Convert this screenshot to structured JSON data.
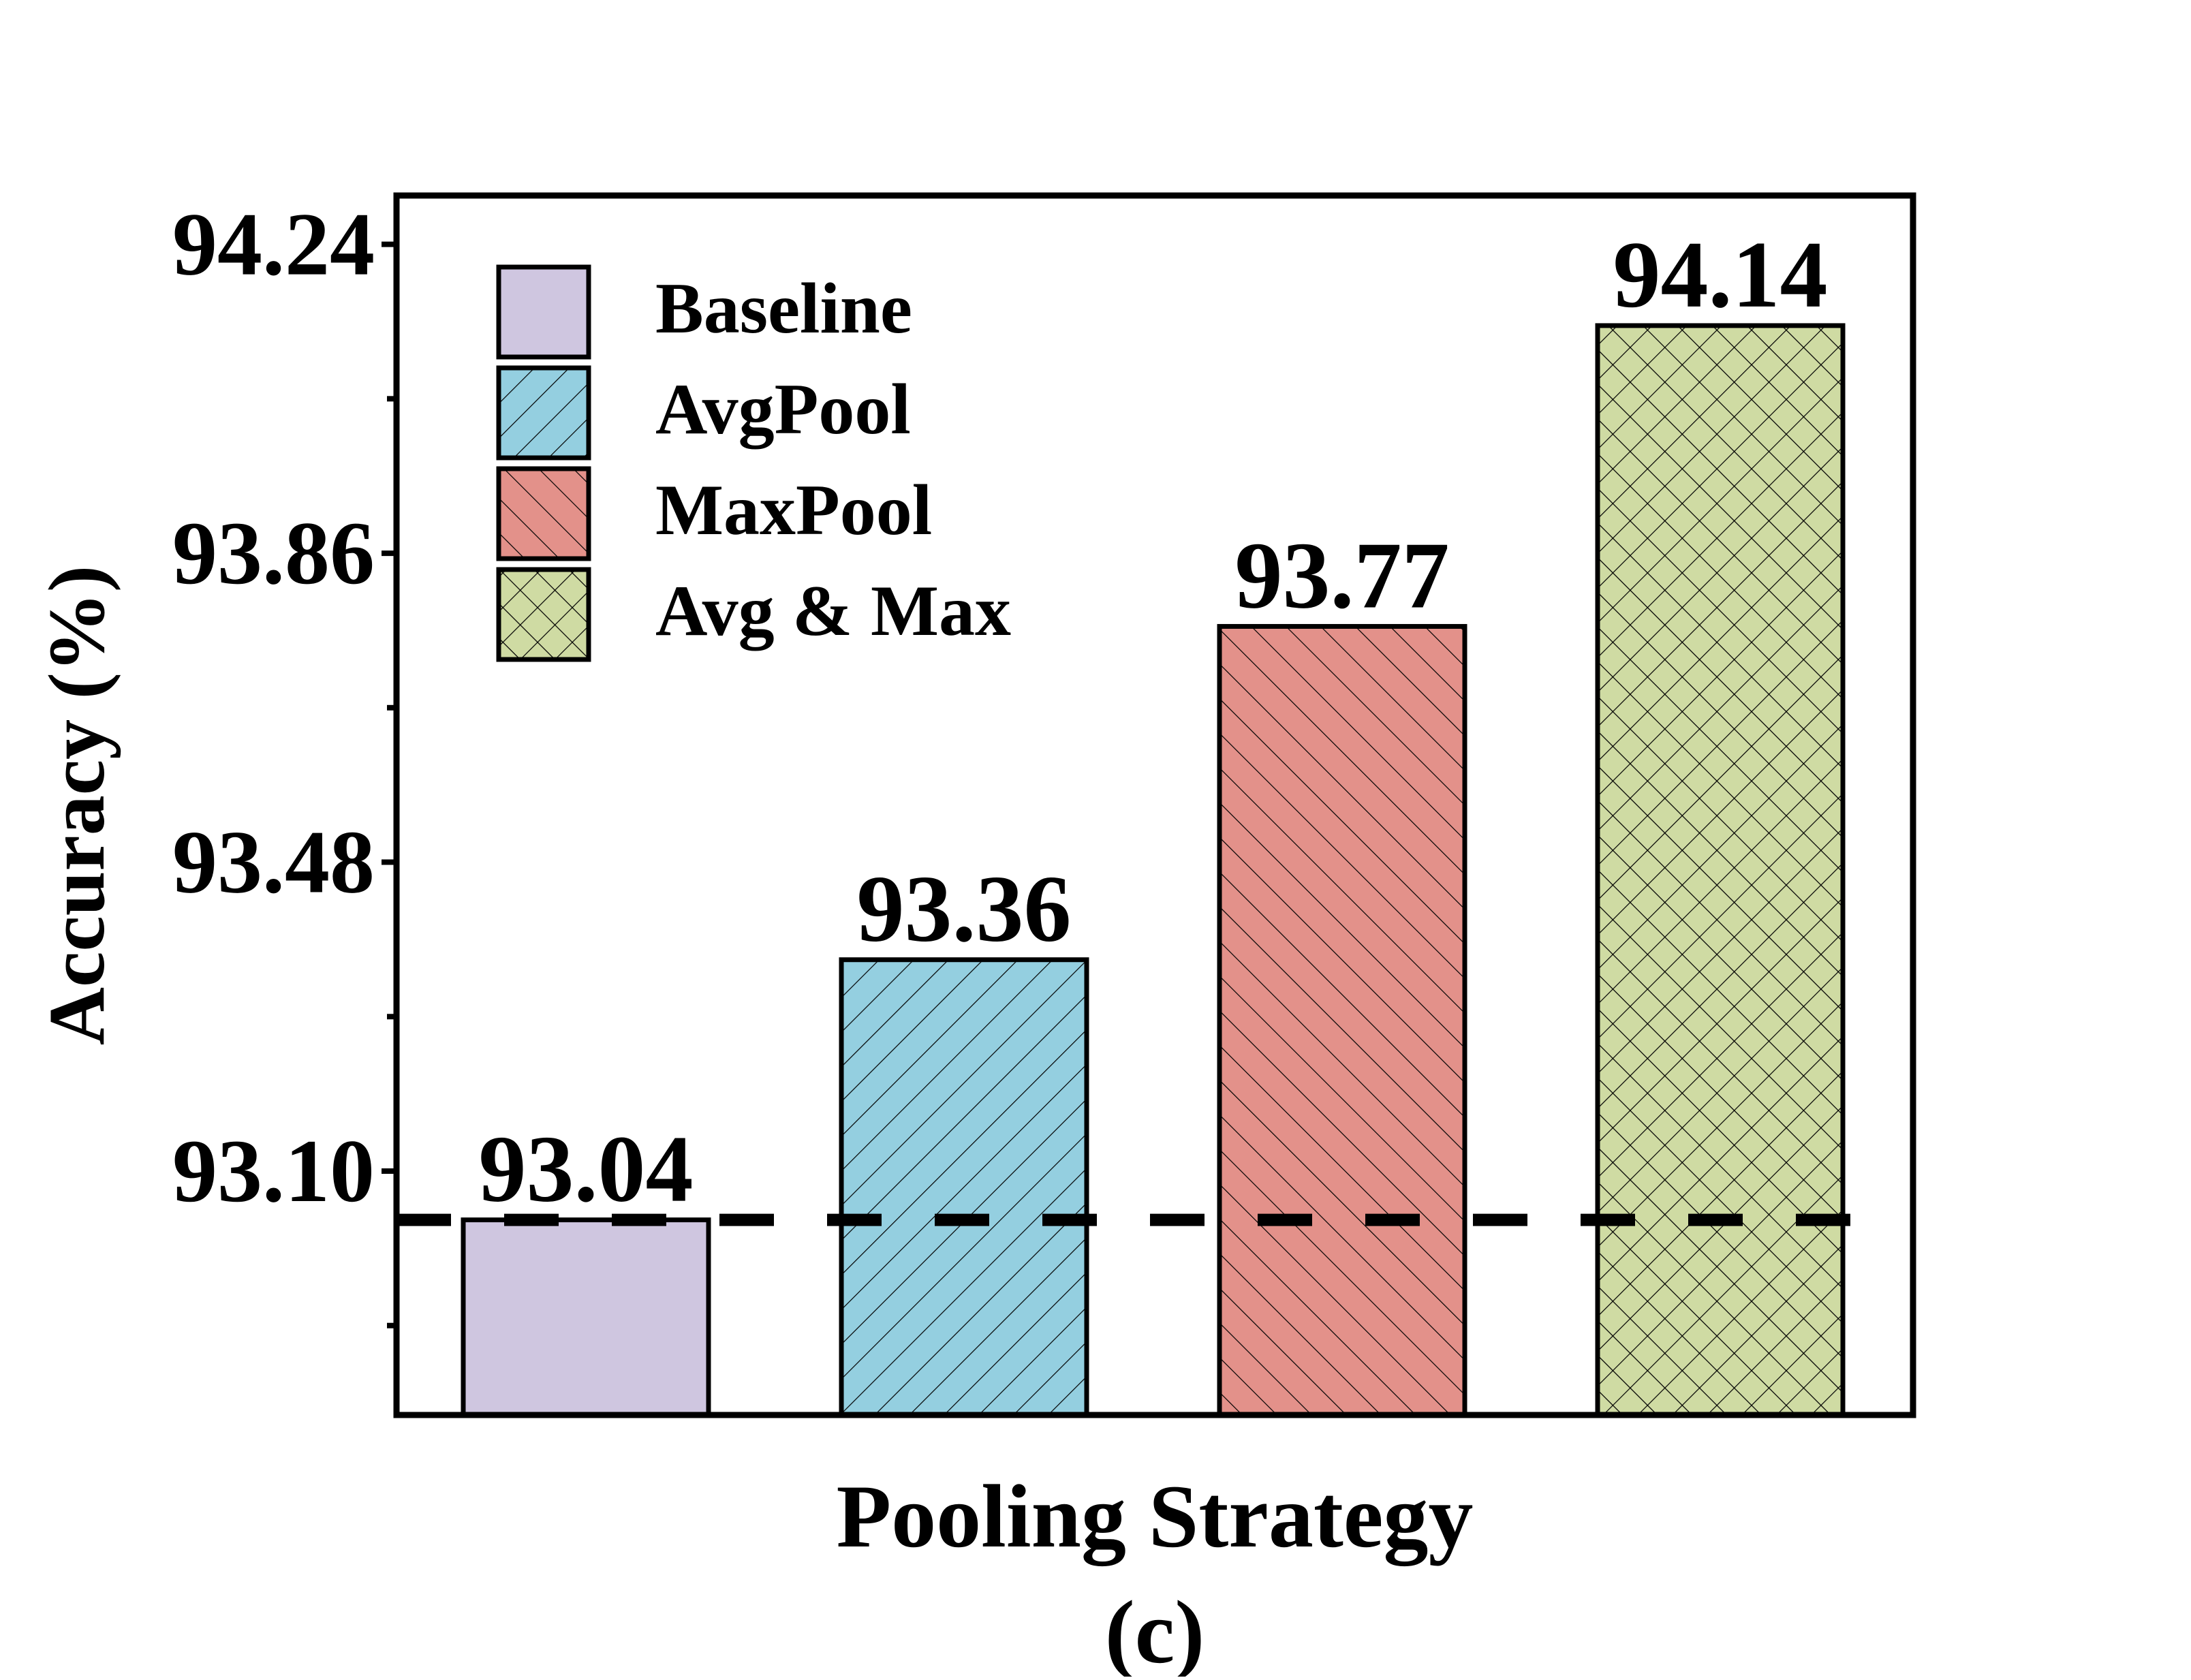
{
  "chart_data": {
    "type": "bar",
    "title": "",
    "xlabel": "Pooling Strategy",
    "ylabel": "Accuracy (%)",
    "caption": "(c)",
    "ylim": [
      92.8,
      94.3
    ],
    "yticks": [
      "93.10",
      "93.48",
      "93.86",
      "94.24"
    ],
    "ytick_values": [
      93.1,
      93.48,
      93.86,
      94.24
    ],
    "minor_ytick_values": [
      92.91,
      93.29,
      93.67,
      94.05
    ],
    "categories": [
      "Baseline",
      "AvgPool",
      "MaxPool",
      "Avg & Max"
    ],
    "values": [
      93.04,
      93.36,
      93.77,
      94.14
    ],
    "value_labels": [
      "93.04",
      "93.36",
      "93.77",
      "94.14"
    ],
    "bar_colors": [
      "#cfc6e0",
      "#94cfe0",
      "#e3918a",
      "#cfdba3"
    ],
    "patterns": [
      "none",
      "forward-diagonal",
      "back-diagonal",
      "crosshatch"
    ],
    "reference_line": {
      "value": 93.04,
      "style": "dashed"
    },
    "legend": {
      "placement": "top-left",
      "entries": [
        "Baseline",
        "AvgPool",
        "MaxPool",
        "Avg & Max"
      ]
    },
    "grid": false
  }
}
